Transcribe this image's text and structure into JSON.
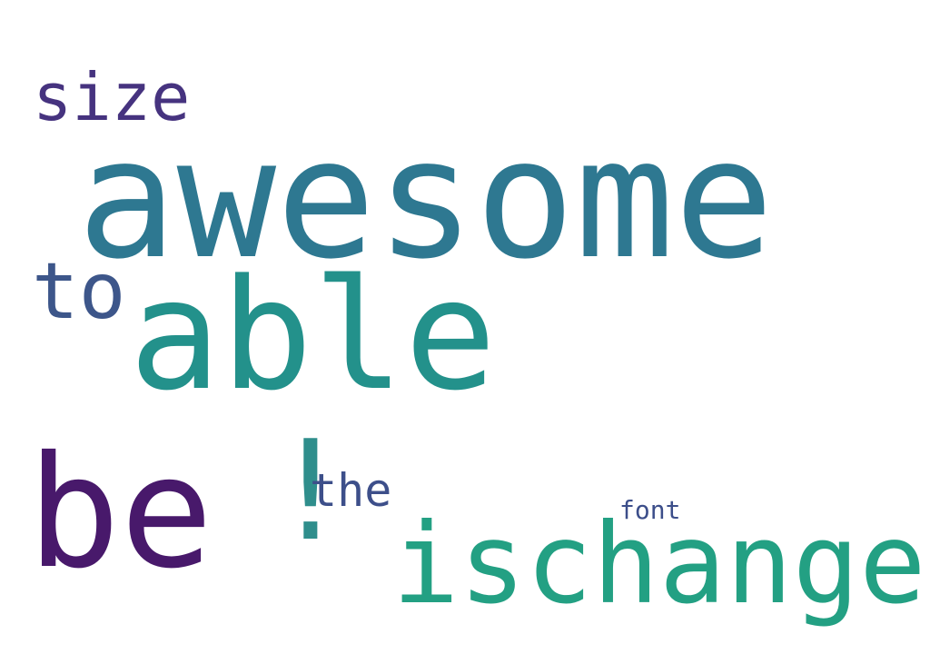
{
  "words": {
    "awesome": {
      "text": "awesome",
      "color": "#2e7891"
    },
    "able": {
      "text": "able",
      "color": "#23918b"
    },
    "be": {
      "text": "be",
      "color": "#48196b"
    },
    "ischange": {
      "text": "ischange",
      "color": "#23a083"
    },
    "bang": {
      "text": "!",
      "color": "#2f8e8c"
    },
    "size": {
      "text": "size",
      "color": "#46337f"
    },
    "to": {
      "text": "to",
      "color": "#3d568a"
    },
    "the": {
      "text": "the",
      "color": "#3d4f8a"
    },
    "font": {
      "text": "font",
      "color": "#3c4e8a"
    }
  }
}
